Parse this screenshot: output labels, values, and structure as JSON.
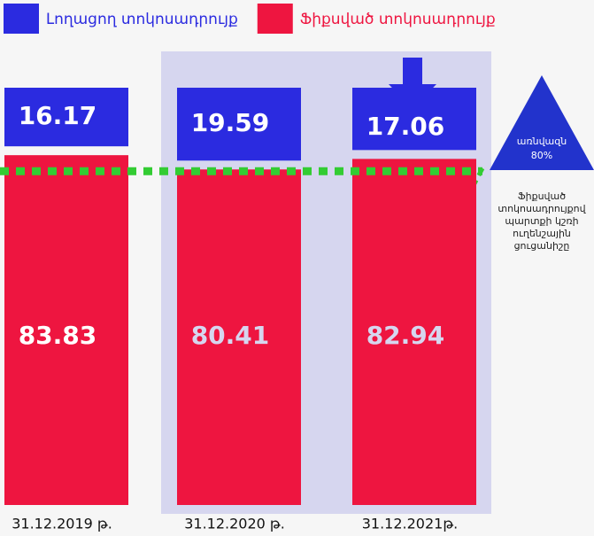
{
  "chart_data": {
    "type": "stacked_bar",
    "categories": [
      "31.12.2019 թ.",
      "31.12.2020 թ.",
      "31.12.2021թ."
    ],
    "series": [
      {
        "name": "Լողացող տոկոսադրույք",
        "color": "#2b2be0",
        "values": [
          16.17,
          19.59,
          17.06
        ]
      },
      {
        "name": "Ֆիքսված տոկոսադրույք",
        "color": "#ee1540",
        "values": [
          83.83,
          80.41,
          82.94
        ]
      }
    ],
    "threshold": {
      "value": 80,
      "label": "80%"
    },
    "threshold_title": "առնվազն",
    "threshold_note": [
      "Ֆիքսված",
      "տոկոսադրույքով",
      "պարտքի կշռի",
      "ուղենշային",
      "ցուցանիշը"
    ],
    "legend": "top-left"
  }
}
